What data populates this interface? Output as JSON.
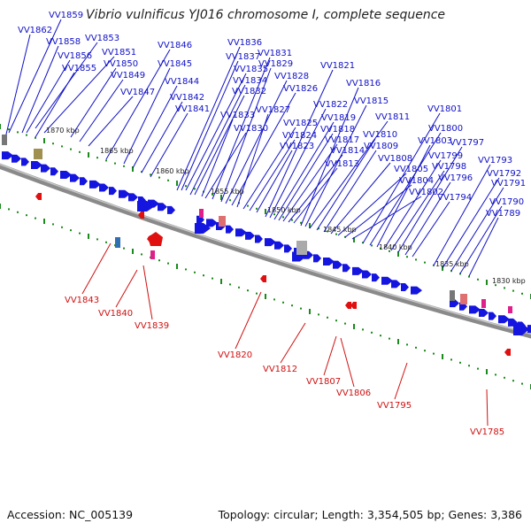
{
  "title": "Vibrio vulnificus YJ016 chromosome I, complete sequence",
  "footer": {
    "accession": "Accession: NC_005139",
    "summary": "Topology: circular; Length: 3,354,505 bp; Genes: 3,386"
  },
  "colors": {
    "forward_label": "#1010c8",
    "reverse_label": "#d01010",
    "forward_gene": "#1515e0",
    "reverse_gene": "#e01010",
    "tick": "#1a8a1a",
    "backbone": "#8a8a8a"
  },
  "kbp_labels": [
    "1870 kbp",
    "1865 kbp",
    "1860 kbp",
    "1855 kbp",
    "1850 kbp",
    "1845 kbp",
    "1840 kbp",
    "1835 kbp",
    "1830 kbp"
  ],
  "forward_labels": [
    "VV1859",
    "VV1862",
    "VV1858",
    "VV1853",
    "VV1856",
    "VV1851",
    "VV1855",
    "VV1850",
    "VV1849",
    "VV1847",
    "VV1846",
    "VV1845",
    "VV1844",
    "VV1842",
    "VV1841",
    "VV1836",
    "VV1837",
    "VV1835",
    "VV1834",
    "VV1832",
    "VV1833",
    "VV1830",
    "VV1831",
    "VV1829",
    "VV1828",
    "VV1826",
    "VV1827",
    "VV1825",
    "VV1824",
    "VV1823",
    "VV1821",
    "VV1822",
    "VV1819",
    "VV1818",
    "VV1817",
    "VV1814",
    "VV1813",
    "VV1816",
    "VV1815",
    "VV1811",
    "VV1810",
    "VV1809",
    "VV1808",
    "VV1805",
    "VV1804",
    "VV1802",
    "VV1801",
    "VV1800",
    "VV1803",
    "VV1799",
    "VV1798",
    "VV1797",
    "VV1796",
    "VV1794",
    "VV1793",
    "VV1792",
    "VV1791",
    "VV1790",
    "VV1789"
  ],
  "reverse_labels": [
    "VV1843",
    "VV1840",
    "VV1839",
    "VV1820",
    "VV1812",
    "VV1807",
    "VV1806",
    "VV1795",
    "VV1785"
  ]
}
